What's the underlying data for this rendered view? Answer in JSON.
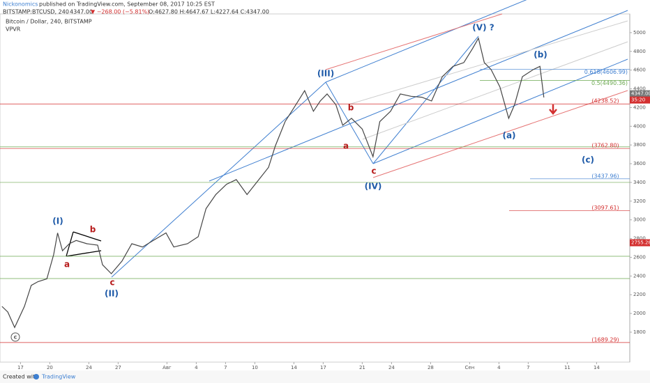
{
  "header": {
    "author": "Nickonomics",
    "published": "published on TradingView.com, September 08, 2017 10:25 EST",
    "symbol": "BITSTAMP:BTCUSD, 240",
    "last": "4347.00",
    "change": "▼ −268.00 (−5.81%)",
    "ohlc": "O:4627.80 H:4647.67 L:4227.64 C:4347.00"
  },
  "legend": {
    "name": "Bitcoin / Dollar, 240, BITSTAMP",
    "indicator": "VPVR"
  },
  "footer": {
    "created": "Created with",
    "brand": "TradingView"
  },
  "chart_data": {
    "type": "line",
    "color": "#444444",
    "x": [
      -1.9,
      -1.3,
      -0.6,
      0.4,
      1.1,
      1.8,
      2.7,
      3.4,
      3.8,
      4.3,
      5,
      5.7,
      6.8,
      7.9,
      8.4,
      9.3,
      10.4,
      11.4,
      12.5,
      13.6,
      14.9,
      15.7,
      17.1,
      18.2,
      19,
      20,
      21.1,
      22.1,
      23.2,
      24.3,
      25.4,
      26.1,
      27.1,
      28.2,
      29.1,
      30,
      30.7,
      31.4,
      32.3,
      33,
      33.9,
      35,
      36.1,
      36.8,
      37.9,
      38.9,
      40,
      41.1,
      42.1,
      43.2,
      44.3,
      45.4,
      46.3,
      46.9,
      47.5,
      48.2,
      49.1,
      50,
      50.6,
      51.4,
      52.5,
      53.2,
      53.6
    ],
    "values": [
      2075,
      2015,
      1850,
      2075,
      2300,
      2340,
      2370,
      2630,
      2860,
      2670,
      2745,
      2780,
      2745,
      2730,
      2520,
      2425,
      2560,
      2745,
      2710,
      2780,
      2860,
      2710,
      2745,
      2820,
      3120,
      3270,
      3380,
      3430,
      3270,
      3415,
      3560,
      3790,
      4050,
      4230,
      4380,
      4160,
      4270,
      4345,
      4230,
      4010,
      4085,
      3970,
      3675,
      4050,
      4160,
      4345,
      4320,
      4310,
      4270,
      4530,
      4640,
      4680,
      4830,
      4940,
      4680,
      4605,
      4420,
      4085,
      4230,
      4530,
      4605,
      4640,
      4308
    ],
    "xlim": [
      -2.1,
      62.4
    ],
    "xticks": [
      {
        "value": 0,
        "label": "17"
      },
      {
        "value": 3,
        "label": "20"
      },
      {
        "value": 7,
        "label": "24"
      },
      {
        "value": 10,
        "label": "27"
      },
      {
        "value": 15,
        "label": "Авг"
      },
      {
        "value": 18,
        "label": "4"
      },
      {
        "value": 21,
        "label": "7"
      },
      {
        "value": 24,
        "label": "10"
      },
      {
        "value": 28,
        "label": "14"
      },
      {
        "value": 31,
        "label": "17"
      },
      {
        "value": 35,
        "label": "21"
      },
      {
        "value": 38,
        "label": "24"
      },
      {
        "value": 42,
        "label": "28"
      },
      {
        "value": 46,
        "label": "Сен"
      },
      {
        "value": 49,
        "label": "4"
      },
      {
        "value": 52,
        "label": "7"
      },
      {
        "value": 56,
        "label": "11"
      },
      {
        "value": 59,
        "label": "14"
      }
    ],
    "ylim": [
      1480,
      5200
    ],
    "yticks": [
      1800,
      2000,
      2200,
      2400,
      2600,
      2800,
      3000,
      3200,
      3400,
      3600,
      3800,
      4000,
      4200,
      4400,
      4600,
      4800,
      5000
    ],
    "levels": [
      {
        "value": 4238.52,
        "label": "(4238.52)",
        "color": "#d32f2f"
      },
      {
        "value": 3762.8,
        "label": "(3762.80)",
        "color": "#d32f2f"
      },
      {
        "value": 3437.96,
        "label": "(3437.96)",
        "color": "#3f7fd0"
      },
      {
        "value": 3097.61,
        "label": "(3097.61)",
        "color": "#d32f2f"
      },
      {
        "value": 1689.29,
        "label": "(1689.29)",
        "color": "#d32f2f"
      }
    ],
    "green_levels": [
      3780,
      3400,
      2611,
      2373
    ],
    "fib": [
      {
        "value": 4606.99,
        "label": "0.618(4606.99)",
        "color": "#3f7fd0"
      },
      {
        "value": 4490.36,
        "label": "0.5(4490.36)",
        "color": "#6aa84f"
      }
    ],
    "price_tags": [
      {
        "value": 4347,
        "label": "4347.00",
        "color": "#777777"
      },
      {
        "value": 4280,
        "label": "35:20",
        "color": "#d32f2f"
      },
      {
        "value": 2755.28,
        "label": "2755.28",
        "color": "#d32f2f"
      }
    ],
    "waves": [
      "(I)",
      "(II)",
      "(III)",
      "(IV)",
      "(V) ?",
      "a",
      "b",
      "c",
      "a",
      "b",
      "c",
      "(a)",
      "(b)",
      "(c)",
      "c"
    ]
  }
}
